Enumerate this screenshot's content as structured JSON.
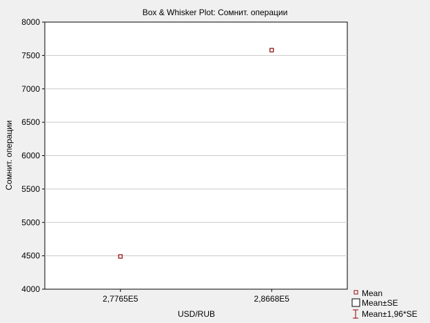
{
  "chart_data": {
    "type": "scatter",
    "title": "Box & Whisker Plot: Сомнит. операции",
    "xlabel": "USD/RUB",
    "ylabel": "Сомнит. операции",
    "categories": [
      "2,7765E5",
      "2,8668E5"
    ],
    "series": [
      {
        "name": "Mean",
        "values": [
          4490,
          7580
        ]
      }
    ],
    "ylim": [
      4000,
      8000
    ],
    "yticks": [
      4000,
      4500,
      5000,
      5500,
      6000,
      6500,
      7000,
      7500,
      8000
    ],
    "grid": true,
    "legend": {
      "placement": "bottom-right",
      "items": [
        "Mean",
        "Mean±SE",
        "Mean±1,96*SE"
      ]
    },
    "colors": {
      "marker": "#8b0000",
      "gridline": "#c8c8c8",
      "plot_bg": "#ffffff",
      "page_bg": "#f0f0f0"
    }
  }
}
